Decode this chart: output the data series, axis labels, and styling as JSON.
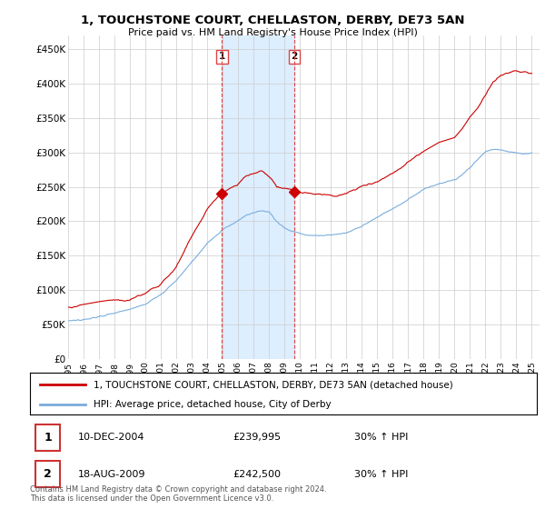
{
  "title": "1, TOUCHSTONE COURT, CHELLASTON, DERBY, DE73 5AN",
  "subtitle": "Price paid vs. HM Land Registry's House Price Index (HPI)",
  "ylim": [
    0,
    470000
  ],
  "xlim_start": 1995.0,
  "xlim_end": 2025.5,
  "yticks": [
    0,
    50000,
    100000,
    150000,
    200000,
    250000,
    300000,
    350000,
    400000,
    450000
  ],
  "ytick_labels": [
    "£0",
    "£50K",
    "£100K",
    "£150K",
    "£200K",
    "£250K",
    "£300K",
    "£350K",
    "£400K",
    "£450K"
  ],
  "xtick_years": [
    1995,
    1996,
    1997,
    1998,
    1999,
    2000,
    2001,
    2002,
    2003,
    2004,
    2005,
    2006,
    2007,
    2008,
    2009,
    2010,
    2011,
    2012,
    2013,
    2014,
    2015,
    2016,
    2017,
    2018,
    2019,
    2020,
    2021,
    2022,
    2023,
    2024,
    2025
  ],
  "sale1_x": 2004.95,
  "sale1_y": 239995,
  "sale1_label": "1",
  "sale1_date": "10-DEC-2004",
  "sale1_price": "£239,995",
  "sale1_hpi": "30% ↑ HPI",
  "sale2_x": 2009.63,
  "sale2_y": 242500,
  "sale2_label": "2",
  "sale2_date": "18-AUG-2009",
  "sale2_price": "£242,500",
  "sale2_hpi": "30% ↑ HPI",
  "red_line_color": "#cc0000",
  "blue_line_color": "#7aaddc",
  "vline_color": "#dd4444",
  "shade_color": "#ddeeff",
  "marker_color": "#cc0000",
  "legend1_label": "1, TOUCHSTONE COURT, CHELLASTON, DERBY, DE73 5AN (detached house)",
  "legend2_label": "HPI: Average price, detached house, City of Derby",
  "footer": "Contains HM Land Registry data © Crown copyright and database right 2024.\nThis data is licensed under the Open Government Licence v3.0.",
  "background_color": "#ffffff",
  "grid_color": "#cccccc"
}
